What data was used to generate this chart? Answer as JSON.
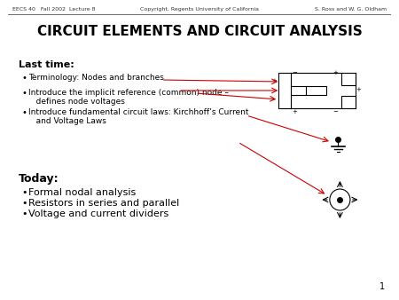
{
  "title": "CIRCUIT ELEMENTS AND CIRCUIT ANALYSIS",
  "header_left": "EECS 40   Fall 2002  Lecture 8",
  "header_center": "Copyright, Regents University of California",
  "header_right": "S. Ross and W. G. Oldham",
  "page_number": "1",
  "last_time_header": "Last time:",
  "last_time_bullets": [
    "Terminology: Nodes and branches",
    "Introduce the implicit reference (common) node –\n   defines node voltages",
    "Introduce fundamental circuit laws: Kirchhoff’s Current\n   and Voltage Laws"
  ],
  "today_header": "Today:",
  "today_bullets": [
    "Formal nodal analysis",
    "Resistors in series and parallel",
    "Voltage and current dividers"
  ],
  "bg_color": "#ffffff",
  "text_color": "#000000",
  "arrow_color": "#cc0000",
  "circuit_color": "#000000"
}
